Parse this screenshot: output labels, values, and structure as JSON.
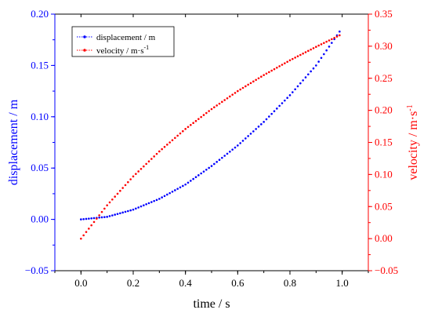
{
  "chart_data": {
    "type": "scatter",
    "xlabel": "time / s",
    "xlim": [
      -0.1,
      1.1
    ],
    "xticks": [
      0.0,
      0.2,
      0.4,
      0.6,
      0.8,
      1.0
    ],
    "xtick_labels": [
      "0.0",
      "0.2",
      "0.4",
      "0.6",
      "0.8",
      "1.0"
    ],
    "left_axis": {
      "label": "displacement / m",
      "color": "#0000ff",
      "lim": [
        -0.05,
        0.2
      ],
      "ticks": [
        -0.05,
        0.0,
        0.05,
        0.1,
        0.15,
        0.2
      ],
      "tick_labels": [
        "−0.05",
        "0.00",
        "0.05",
        "0.10",
        "0.15",
        "0.20"
      ]
    },
    "right_axis": {
      "label_main": "velocity / m·s",
      "label_sup": "-1",
      "color": "#ff0000",
      "lim": [
        -0.05,
        0.35
      ],
      "ticks": [
        -0.05,
        0.0,
        0.05,
        0.1,
        0.15,
        0.2,
        0.25,
        0.3,
        0.35
      ],
      "tick_labels": [
        "−0.05",
        "0.00",
        "0.05",
        "0.10",
        "0.15",
        "0.20",
        "0.25",
        "0.30",
        "0.35"
      ]
    },
    "legend": {
      "position": "top-left",
      "entries": [
        {
          "label_main": "displacement / m",
          "label_sup": "",
          "color": "#0000ff"
        },
        {
          "label_main": "velocity / m·s",
          "label_sup": "-1",
          "color": "#ff0000"
        }
      ]
    },
    "series": [
      {
        "name": "displacement / m",
        "axis": "left",
        "color": "#0000ff",
        "x": [
          0.0,
          0.1,
          0.2,
          0.3,
          0.4,
          0.5,
          0.6,
          0.7,
          0.8,
          0.9,
          0.99
        ],
        "y": [
          0.0,
          0.0025,
          0.0095,
          0.02,
          0.034,
          0.052,
          0.072,
          0.095,
          0.121,
          0.15,
          0.183
        ]
      },
      {
        "name": "velocity / m·s-1",
        "axis": "right",
        "color": "#ff0000",
        "x": [
          0.0,
          0.1,
          0.2,
          0.3,
          0.4,
          0.5,
          0.6,
          0.7,
          0.8,
          0.9,
          0.99
        ],
        "y": [
          0.0,
          0.052,
          0.097,
          0.136,
          0.171,
          0.202,
          0.23,
          0.255,
          0.278,
          0.299,
          0.317
        ]
      }
    ]
  }
}
